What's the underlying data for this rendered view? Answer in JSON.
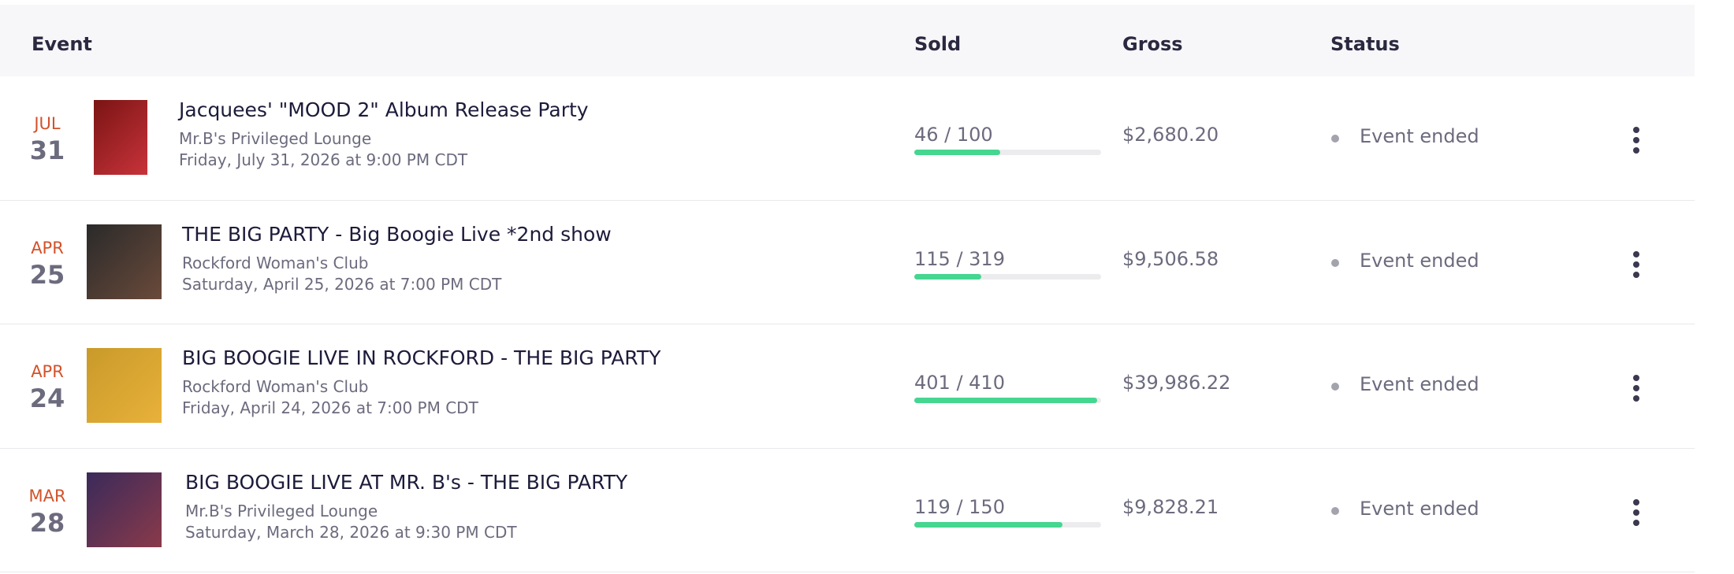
{
  "header": {
    "event": "Event",
    "sold": "Sold",
    "gross": "Gross",
    "status": "Status"
  },
  "rows": [
    {
      "month": "JUL",
      "day": "31",
      "title": "Jacquees' \"MOOD 2\" Album Release Party",
      "venue": "Mr.B's Privileged Lounge",
      "datetime": "Friday, July 31, 2026 at 9:00 PM CDT",
      "sold_label": "46 / 100",
      "sold": 46,
      "capacity": 100,
      "gross": "$2,680.20",
      "status": "Event ended"
    },
    {
      "month": "APR",
      "day": "25",
      "title": "THE BIG PARTY - Big Boogie Live *2nd show",
      "venue": "Rockford Woman's Club",
      "datetime": "Saturday, April 25, 2026 at 7:00 PM CDT",
      "sold_label": "115 / 319",
      "sold": 115,
      "capacity": 319,
      "gross": "$9,506.58",
      "status": "Event ended"
    },
    {
      "month": "APR",
      "day": "24",
      "title": "BIG BOOGIE LIVE IN ROCKFORD - THE BIG PARTY",
      "venue": "Rockford Woman's Club",
      "datetime": "Friday, April 24, 2026 at 7:00 PM CDT",
      "sold_label": "401 / 410",
      "sold": 401,
      "capacity": 410,
      "gross": "$39,986.22",
      "status": "Event ended"
    },
    {
      "month": "MAR",
      "day": "28",
      "title": "BIG BOOGIE LIVE AT MR. B's - THE BIG PARTY",
      "venue": "Mr.B's Privileged Lounge",
      "datetime": "Saturday, March 28, 2026 at 9:30 PM CDT",
      "sold_label": "119 / 150",
      "sold": 119,
      "capacity": 150,
      "gross": "$9,828.21",
      "status": "Event ended"
    }
  ]
}
